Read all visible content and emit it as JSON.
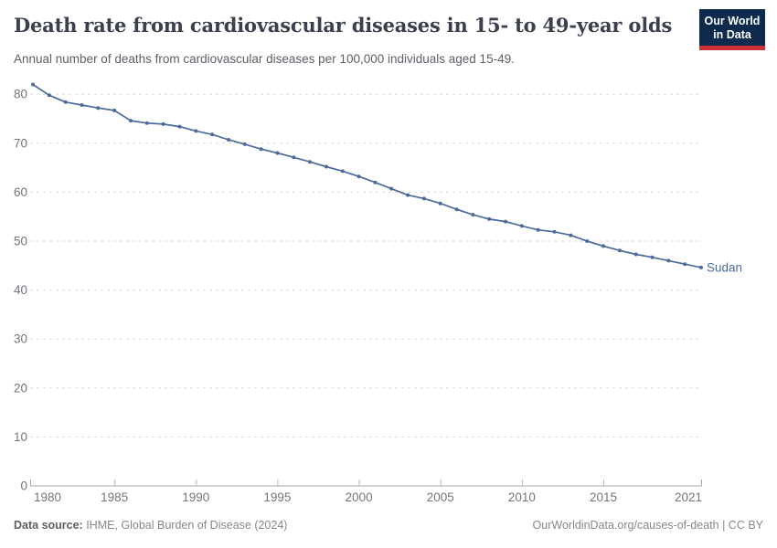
{
  "header": {
    "title": "Death rate from cardiovascular diseases in 15- to 49-year olds",
    "subtitle": "Annual number of deaths from cardiovascular diseases per 100,000 individuals aged 15-49.",
    "logo": {
      "line1": "Our World",
      "line2": "in Data"
    }
  },
  "chart_data": {
    "type": "line",
    "title": "Death rate from cardiovascular diseases in 15- to 49-year olds",
    "subtitle": "Annual number of deaths from cardiovascular diseases per 100,000 individuals aged 15-49.",
    "xlabel": "",
    "ylabel": "",
    "ylim": [
      0,
      80
    ],
    "grid": "horizontal-dashed",
    "legend_position": "end-of-line-label",
    "x": [
      1980,
      1981,
      1982,
      1983,
      1984,
      1985,
      1986,
      1987,
      1988,
      1989,
      1990,
      1991,
      1992,
      1993,
      1994,
      1995,
      1996,
      1997,
      1998,
      1999,
      2000,
      2001,
      2002,
      2003,
      2004,
      2005,
      2006,
      2007,
      2008,
      2009,
      2010,
      2011,
      2012,
      2013,
      2014,
      2015,
      2016,
      2017,
      2018,
      2019,
      2020,
      2021
    ],
    "xticks": [
      1980,
      1985,
      1990,
      1995,
      2000,
      2005,
      2010,
      2015,
      2021
    ],
    "yticks": [
      0,
      10,
      20,
      30,
      40,
      50,
      60,
      70,
      80
    ],
    "series": [
      {
        "name": "Sudan",
        "color": "#4C6A9C",
        "values": [
          82.0,
          79.8,
          78.4,
          77.8,
          77.2,
          76.7,
          74.6,
          74.1,
          73.9,
          73.4,
          72.5,
          71.8,
          70.7,
          69.8,
          68.8,
          68.0,
          67.1,
          66.2,
          65.2,
          64.3,
          63.2,
          62.0,
          60.7,
          59.4,
          58.7,
          57.7,
          56.5,
          55.4,
          54.5,
          54.0,
          53.1,
          52.3,
          51.9,
          51.2,
          50.0,
          49.0,
          48.1,
          47.3,
          46.7,
          46.0,
          45.3,
          44.6
        ]
      }
    ]
  },
  "footer": {
    "source_label": "Data source:",
    "source_value": " IHME, Global Burden of Disease (2024)",
    "url": "OurWorldinData.org/causes-of-death",
    "license_suffix": " | CC BY"
  },
  "colors": {
    "line": "#4C6A9C",
    "logo_bg": "#0E2A4D",
    "logo_accent": "#CE3235",
    "title_text": "#3B414C",
    "subtitle_text": "#5B6069",
    "axis_text": "#70757C",
    "gridline": "#D7D7D7",
    "axis_line": "#A2A7AD",
    "tick": "#B5BAC0",
    "footer_text": "#878889"
  }
}
